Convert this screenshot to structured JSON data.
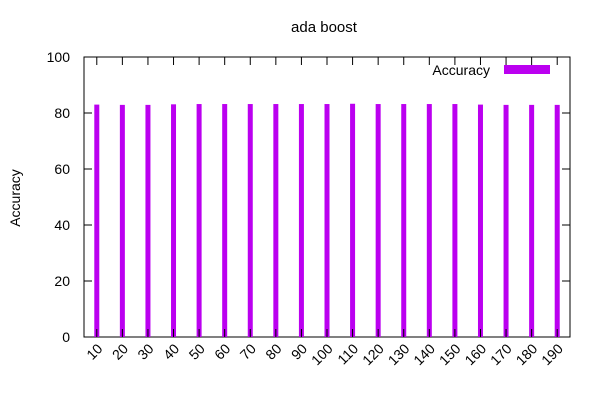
{
  "chart_data": {
    "type": "bar",
    "title": "ada boost",
    "xlabel": "",
    "ylabel": "Accuracy",
    "categories": [
      "10",
      "20",
      "30",
      "40",
      "50",
      "60",
      "70",
      "80",
      "90",
      "100",
      "110",
      "120",
      "130",
      "140",
      "150",
      "160",
      "170",
      "180",
      "190"
    ],
    "series": [
      {
        "name": "Accuracy",
        "values": [
          83.0,
          82.9,
          82.9,
          83.1,
          83.2,
          83.2,
          83.2,
          83.2,
          83.2,
          83.2,
          83.3,
          83.2,
          83.2,
          83.2,
          83.2,
          83.0,
          82.9,
          82.9,
          82.9
        ]
      }
    ],
    "ylim": [
      0,
      100
    ],
    "yticks": [
      0,
      20,
      40,
      60,
      80,
      100
    ],
    "grid": false,
    "legend_position": "top-right",
    "colors": {
      "bar": "#bb00f0",
      "axis": "#000000",
      "background": "#ffffff"
    }
  }
}
